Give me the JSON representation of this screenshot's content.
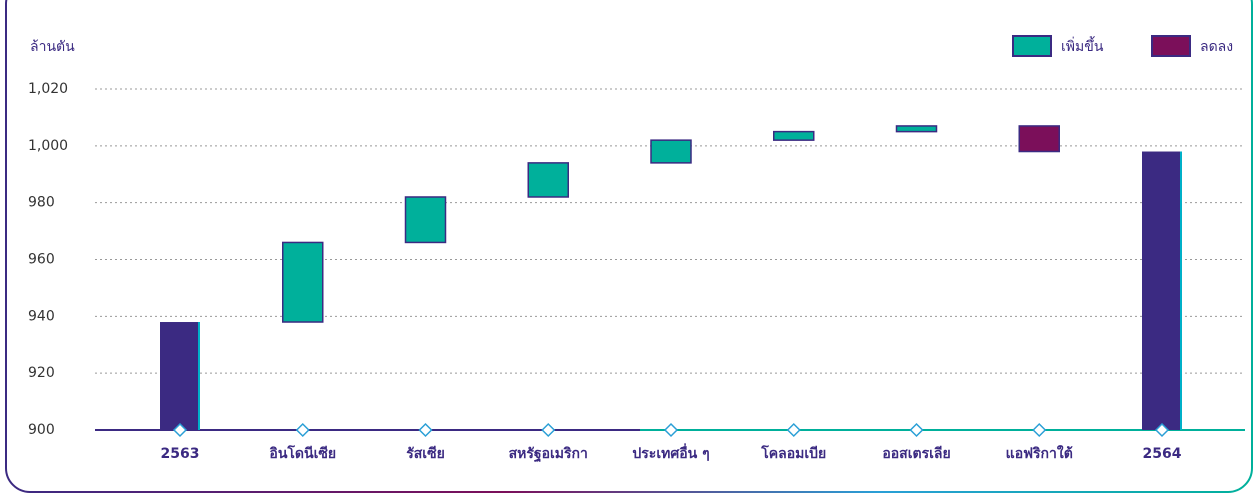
{
  "chart_data": {
    "type": "waterfall",
    "y_label": "ล้านตัน",
    "categories": [
      "2563",
      "อินโดนีเซีย",
      "รัสเซีย",
      "สหรัฐอเมริกา",
      "ประเทศอื่น ๆ",
      "โคลอมเบีย",
      "ออสเตรเลีย",
      "แอฟริกาใต้",
      "2564"
    ],
    "values": [
      938,
      28,
      16,
      12,
      8,
      3,
      2,
      -9,
      998
    ],
    "is_total": [
      true,
      false,
      false,
      false,
      false,
      false,
      false,
      false,
      true
    ],
    "total_color": "#3b2a82",
    "series": [
      {
        "name": "เพิ่มขึ้น",
        "color": "#00b09b"
      },
      {
        "name": "ลดลง",
        "color": "#7b0f5a"
      }
    ],
    "ylim": [
      900,
      1020
    ],
    "yticks": [
      900,
      920,
      940,
      960,
      980,
      {
        "value": 1000,
        "label": "1,000"
      },
      {
        "value": 1020,
        "label": "1,020"
      }
    ],
    "grid": true
  }
}
